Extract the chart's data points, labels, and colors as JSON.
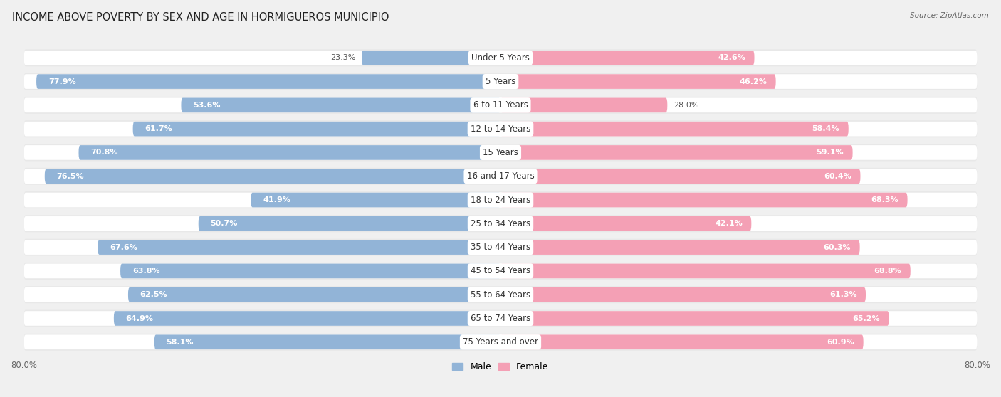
{
  "title": "INCOME ABOVE POVERTY BY SEX AND AGE IN HORMIGUEROS MUNICIPIO",
  "source": "Source: ZipAtlas.com",
  "categories": [
    "Under 5 Years",
    "5 Years",
    "6 to 11 Years",
    "12 to 14 Years",
    "15 Years",
    "16 and 17 Years",
    "18 to 24 Years",
    "25 to 34 Years",
    "35 to 44 Years",
    "45 to 54 Years",
    "55 to 64 Years",
    "65 to 74 Years",
    "75 Years and over"
  ],
  "male_values": [
    23.3,
    77.9,
    53.6,
    61.7,
    70.8,
    76.5,
    41.9,
    50.7,
    67.6,
    63.8,
    62.5,
    64.9,
    58.1
  ],
  "female_values": [
    42.6,
    46.2,
    28.0,
    58.4,
    59.1,
    60.4,
    68.3,
    42.1,
    60.3,
    68.8,
    61.3,
    65.2,
    60.9
  ],
  "male_color": "#92b4d7",
  "female_color": "#f4a0b5",
  "male_label": "Male",
  "female_label": "Female",
  "axis_max": 80.0,
  "bg_color": "#f0f0f0",
  "bar_bg_color": "#e8e8e8",
  "bar_inner_color": "#ffffff",
  "title_fontsize": 10.5,
  "label_fontsize": 8.5,
  "value_fontsize": 8.0
}
